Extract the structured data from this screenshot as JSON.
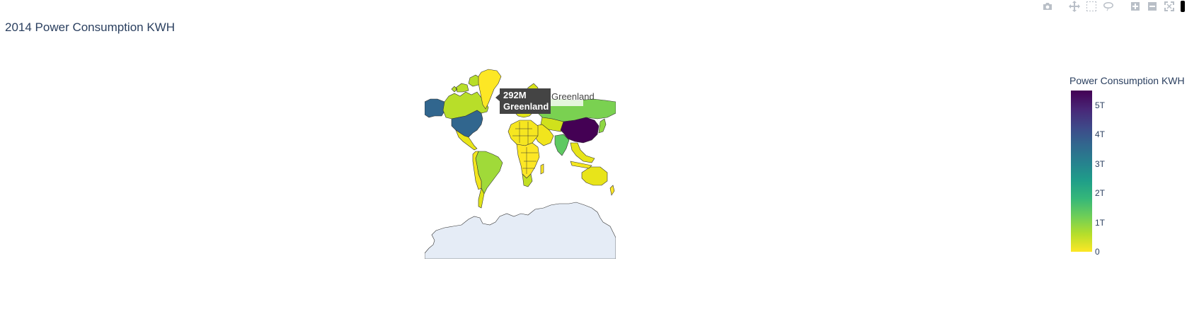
{
  "chart_data": {
    "type": "choropleth",
    "title": "2014 Power Consumption KWH",
    "projection": "mercator",
    "colorscale": "viridis reversed",
    "colorbar": {
      "title": "Power Consumption KWH",
      "range": [
        0,
        5500000000000
      ],
      "ticks": [
        {
          "value": 0,
          "label": "0"
        },
        {
          "value": 1000000000000,
          "label": "1T"
        },
        {
          "value": 2000000000000,
          "label": "2T"
        },
        {
          "value": 3000000000000,
          "label": "3T"
        },
        {
          "value": 4000000000000,
          "label": "4T"
        },
        {
          "value": 5000000000000,
          "label": "5T"
        }
      ]
    },
    "hover": {
      "value_text": "292M",
      "country": "Greenland"
    },
    "map_label": "Greenland"
  },
  "modebar": {
    "icons": [
      "camera-icon",
      "pan-icon",
      "box-select-icon",
      "lasso-icon",
      "zoom-in-icon",
      "zoom-out-icon",
      "autoscale-icon"
    ]
  }
}
